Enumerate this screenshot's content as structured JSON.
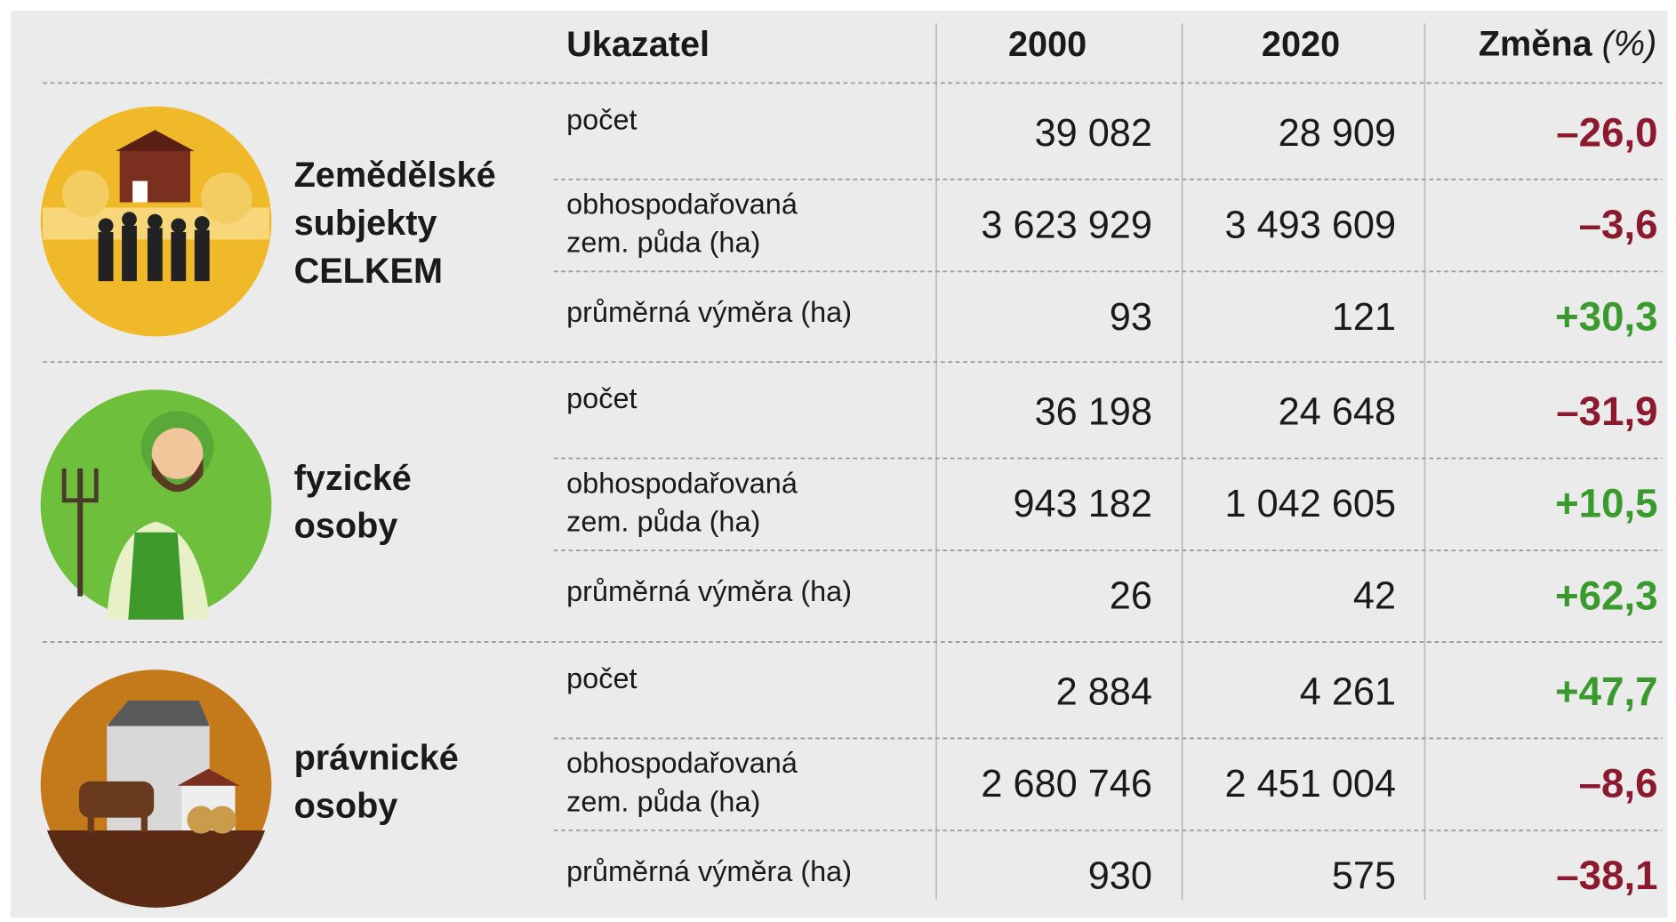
{
  "header": {
    "indicator": "Ukazatel",
    "year_a": "2000",
    "year_b": "2020",
    "change": "Změna",
    "change_unit": "(%)"
  },
  "groups": [
    {
      "label": [
        "Zemědělské",
        "subjekty",
        "CELKEM"
      ],
      "rows": [
        {
          "indicator": [
            "počet"
          ],
          "year_a": "39 082",
          "year_b": "28 909",
          "change": "–26,0",
          "color": "#8b1a2e"
        },
        {
          "indicator": [
            "obhospodařovaná",
            "zem. půda (ha)"
          ],
          "year_a": "3 623 929",
          "year_b": "3 493 609",
          "change": "–3,6",
          "color": "#8b1a2e"
        },
        {
          "indicator": [
            "průměrná výměra (ha)"
          ],
          "year_a": "93",
          "year_b": "121",
          "change": "+30,3",
          "color": "#3a9a2e"
        }
      ]
    },
    {
      "label": [
        "fyzické",
        "osoby"
      ],
      "rows": [
        {
          "indicator": [
            "počet"
          ],
          "year_a": "36 198",
          "year_b": "24 648",
          "change": "–31,9",
          "color": "#8b1a2e"
        },
        {
          "indicator": [
            "obhospodařovaná",
            "zem. půda (ha)"
          ],
          "year_a": "943 182",
          "year_b": "1 042 605",
          "change": "+10,5",
          "color": "#3a9a2e"
        },
        {
          "indicator": [
            "průměrná výměra (ha)"
          ],
          "year_a": "26",
          "year_b": "42",
          "change": "+62,3",
          "color": "#3a9a2e"
        }
      ]
    },
    {
      "label": [
        "právnické",
        "osoby"
      ],
      "rows": [
        {
          "indicator": [
            "počet"
          ],
          "year_a": "2 884",
          "year_b": "4 261",
          "change": "+47,7",
          "color": "#3a9a2e"
        },
        {
          "indicator": [
            "obhospodařovaná",
            "zem. půda (ha)"
          ],
          "year_a": "2 680 746",
          "year_b": "2 451 004",
          "change": "–8,6",
          "color": "#8b1a2e"
        },
        {
          "indicator": [
            "průměrná výměra (ha)"
          ],
          "year_a": "930",
          "year_b": "575",
          "change": "–38,1",
          "color": "#8b1a2e"
        }
      ]
    }
  ]
}
